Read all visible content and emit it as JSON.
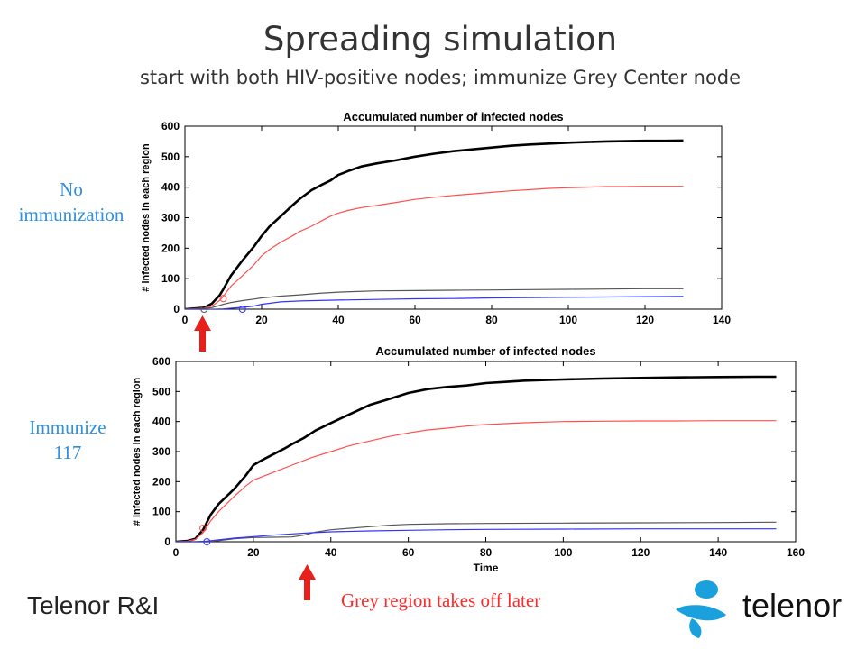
{
  "slide": {
    "title": "Spreading simulation",
    "subtitle": "start with both HIV-positive nodes; immunize Grey Center node",
    "label_top_line1": "No",
    "label_top_line2": "immunization",
    "label_bottom_line1": "Immunize",
    "label_bottom_line2": "117",
    "bottom_note": "Grey region takes off later",
    "footer_left": "Telenor R&I",
    "brand": "telenor"
  },
  "colors": {
    "accent_label": "#2e8fe0",
    "arrow": "#e8201c",
    "note": "#ff2a2a",
    "brand_blue": "#1aa0dc"
  },
  "chart_data": [
    {
      "type": "line",
      "title": "Accumulated number of infected nodes",
      "xlabel": "",
      "ylabel": "# infected nodes in each region",
      "xlim": [
        0,
        140
      ],
      "ylim": [
        0,
        600
      ],
      "xticks": [
        0,
        20,
        40,
        60,
        80,
        100,
        120,
        140
      ],
      "yticks": [
        0,
        100,
        200,
        300,
        400,
        500,
        600
      ],
      "grid": false,
      "series": [
        {
          "color": "#000000",
          "width": 2.6,
          "x": [
            0,
            3,
            5,
            7,
            9,
            10,
            12,
            15,
            18,
            20,
            22,
            25,
            28,
            30,
            33,
            36,
            38,
            40,
            43,
            46,
            50,
            55,
            60,
            65,
            70,
            75,
            80,
            85,
            90,
            95,
            100,
            105,
            110,
            115,
            120,
            125,
            130
          ],
          "y": [
            0,
            3,
            5,
            18,
            45,
            65,
            110,
            160,
            205,
            240,
            270,
            305,
            340,
            362,
            390,
            410,
            422,
            440,
            455,
            468,
            478,
            488,
            500,
            510,
            518,
            524,
            530,
            536,
            540,
            543,
            546,
            548,
            550,
            551,
            552,
            552,
            553
          ]
        },
        {
          "color": "#ff5050",
          "width": 1.2,
          "x": [
            0,
            3,
            5,
            7,
            9,
            10,
            12,
            15,
            18,
            20,
            22,
            25,
            28,
            30,
            33,
            36,
            38,
            40,
            43,
            46,
            50,
            55,
            60,
            65,
            70,
            75,
            80,
            85,
            90,
            95,
            100,
            105,
            110,
            115,
            120,
            125,
            130
          ],
          "y": [
            0,
            2,
            3,
            10,
            28,
            42,
            75,
            110,
            145,
            175,
            195,
            220,
            240,
            255,
            272,
            292,
            305,
            315,
            325,
            333,
            340,
            350,
            360,
            367,
            373,
            378,
            383,
            388,
            392,
            396,
            398,
            400,
            402,
            402,
            403,
            403,
            403
          ]
        },
        {
          "color": "#555555",
          "width": 1.2,
          "x": [
            0,
            3,
            5,
            7,
            9,
            10,
            12,
            15,
            18,
            20,
            25,
            30,
            35,
            40,
            45,
            50,
            60,
            70,
            80,
            90,
            100,
            110,
            120,
            130
          ],
          "y": [
            0,
            1,
            2,
            5,
            12,
            16,
            22,
            28,
            33,
            37,
            43,
            47,
            52,
            56,
            58,
            60,
            61,
            62,
            63,
            64,
            65,
            66,
            67,
            67
          ]
        },
        {
          "color": "#3333ff",
          "width": 1.2,
          "x": [
            0,
            5,
            8,
            10,
            12,
            15,
            18,
            20,
            25,
            30,
            40,
            50,
            60,
            70,
            80,
            90,
            100,
            110,
            120,
            130
          ],
          "y": [
            0,
            0,
            0,
            1,
            3,
            6,
            10,
            16,
            24,
            27,
            30,
            32,
            34,
            35,
            37,
            38,
            39,
            40,
            41,
            42
          ]
        }
      ],
      "markers": [
        {
          "color": "#555555",
          "x": 5,
          "y": 0
        },
        {
          "color": "#ff5050",
          "x": 10,
          "y": 35
        },
        {
          "color": "#3333ff",
          "x": 15,
          "y": 0
        }
      ]
    },
    {
      "type": "line",
      "title": "Accumulated number of infected nodes",
      "xlabel": "Time",
      "ylabel": "# infected nodes in each region",
      "xlim": [
        0,
        160
      ],
      "ylim": [
        0,
        600
      ],
      "xticks": [
        0,
        20,
        40,
        60,
        80,
        100,
        120,
        140,
        160
      ],
      "yticks": [
        0,
        100,
        200,
        300,
        400,
        500,
        600
      ],
      "grid": false,
      "series": [
        {
          "color": "#000000",
          "width": 2.6,
          "x": [
            0,
            3,
            5,
            7,
            9,
            11,
            13,
            15,
            18,
            20,
            22,
            25,
            28,
            30,
            33,
            36,
            40,
            45,
            50,
            55,
            60,
            65,
            70,
            75,
            80,
            85,
            90,
            100,
            110,
            120,
            130,
            140,
            150,
            155
          ],
          "y": [
            0,
            3,
            10,
            40,
            90,
            125,
            150,
            175,
            220,
            255,
            270,
            290,
            310,
            325,
            345,
            370,
            395,
            425,
            455,
            475,
            495,
            508,
            515,
            520,
            528,
            532,
            536,
            540,
            543,
            545,
            547,
            548,
            549,
            549
          ]
        },
        {
          "color": "#ff5050",
          "width": 1.2,
          "x": [
            0,
            3,
            5,
            7,
            9,
            11,
            13,
            15,
            18,
            20,
            25,
            30,
            35,
            40,
            45,
            50,
            55,
            60,
            65,
            70,
            75,
            80,
            90,
            100,
            110,
            120,
            130,
            140,
            150,
            155
          ],
          "y": [
            0,
            2,
            8,
            30,
            70,
            100,
            125,
            150,
            185,
            205,
            230,
            255,
            280,
            300,
            320,
            335,
            350,
            362,
            372,
            378,
            385,
            390,
            396,
            400,
            401,
            402,
            402,
            403,
            403,
            403
          ]
        },
        {
          "color": "#555555",
          "width": 1.2,
          "x": [
            0,
            5,
            8,
            10,
            15,
            20,
            25,
            30,
            33,
            36,
            40,
            45,
            50,
            55,
            60,
            70,
            80,
            100,
            120,
            140,
            155
          ],
          "y": [
            0,
            0,
            1,
            2,
            10,
            14,
            15,
            16,
            22,
            32,
            40,
            45,
            50,
            55,
            58,
            60,
            61,
            62,
            63,
            64,
            65
          ]
        },
        {
          "color": "#3333ff",
          "width": 1.2,
          "x": [
            0,
            5,
            8,
            10,
            15,
            20,
            25,
            30,
            35,
            40,
            50,
            60,
            70,
            80,
            100,
            120,
            140,
            155
          ],
          "y": [
            0,
            0,
            2,
            5,
            12,
            17,
            22,
            26,
            30,
            33,
            36,
            38,
            40,
            41,
            42,
            43,
            43,
            43
          ]
        }
      ],
      "markers": [
        {
          "color": "#ff5050",
          "x": 7,
          "y": 45
        },
        {
          "color": "#3333ff",
          "x": 8,
          "y": 0
        }
      ]
    }
  ]
}
